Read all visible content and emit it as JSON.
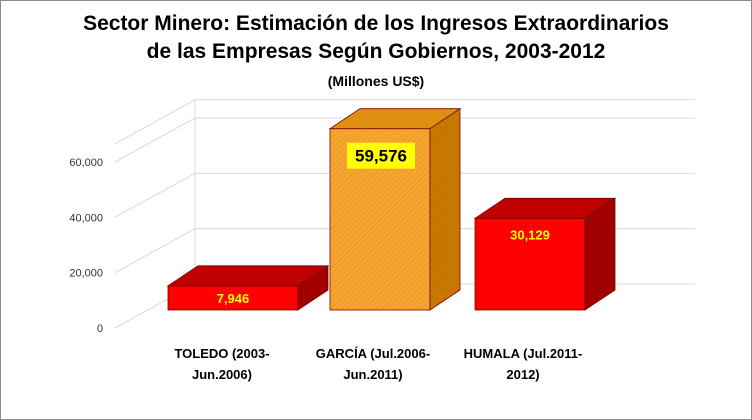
{
  "chart_data": {
    "type": "bar",
    "title_line1": "Sector Minero: Estimación de los Ingresos Extraordinarios",
    "title_line2": "de las Empresas Según Gobiernos, 2003-2012",
    "subtitle": "(Millones US$)",
    "categories": [
      [
        "TOLEDO (2003-",
        "Jun.2006)"
      ],
      [
        "GARCÍA (Jul.2006-",
        "Jun.2011)"
      ],
      [
        "HUMALA (Jul.2011-",
        "2012)"
      ]
    ],
    "values": [
      7946,
      59576,
      30129
    ],
    "data_labels": [
      "7,946",
      "59,576",
      "30,129"
    ],
    "ylim": [
      0,
      60000
    ],
    "yticks": [
      0,
      20000,
      40000,
      60000
    ],
    "ytick_labels": [
      "0",
      "20,000",
      "40,000",
      "60,000"
    ],
    "grid": true,
    "style": "3d-column",
    "colors": {
      "red_front": "#ff0000",
      "red_top": "#c00000",
      "red_side": "#a00000",
      "orange_front": "#f7a531",
      "orange_top": "#e08e12",
      "orange_side": "#c77800",
      "label_highlight": "#ffff00",
      "label_yellow_text": "#ffff00"
    }
  }
}
